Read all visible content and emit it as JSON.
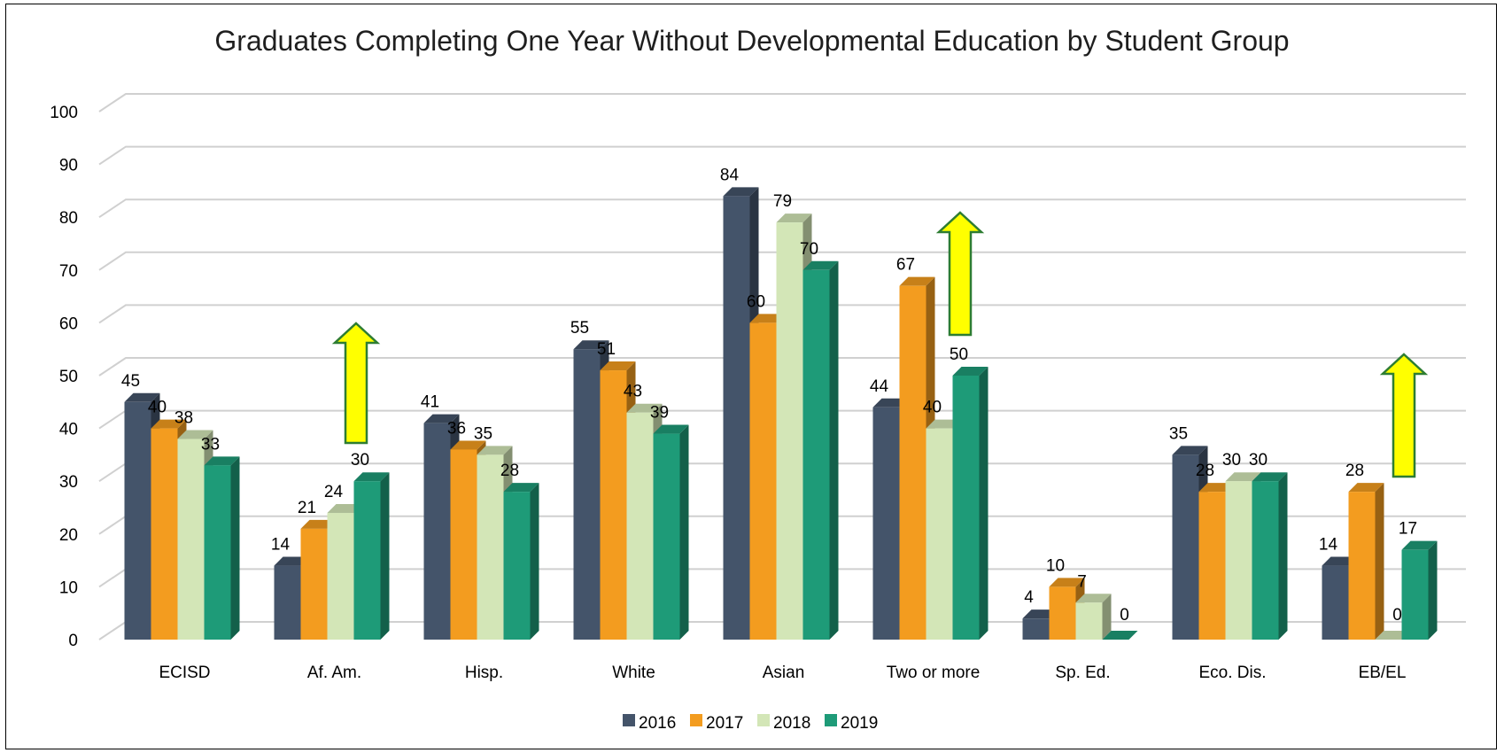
{
  "chart_data": {
    "type": "bar",
    "title": "Graduates Completing One Year Without Developmental Education by Student Group",
    "xlabel": "",
    "ylabel": "",
    "ylim": [
      0,
      100
    ],
    "yticks": [
      0,
      10,
      20,
      30,
      40,
      50,
      60,
      70,
      80,
      90,
      100
    ],
    "grid": true,
    "legend_position": "bottom",
    "three_d": true,
    "categories": [
      "ECISD",
      "Af. Am.",
      "Hisp.",
      "White",
      "Asian",
      "Two or more",
      "Sp. Ed.",
      "Eco. Dis.",
      "EB/EL"
    ],
    "series": [
      {
        "name": "2016",
        "color": "#44546a",
        "values": [
          45,
          14,
          41,
          55,
          84,
          44,
          4,
          35,
          14
        ]
      },
      {
        "name": "2017",
        "color": "#f39c1f",
        "values": [
          40,
          21,
          36,
          51,
          60,
          67,
          10,
          28,
          28
        ]
      },
      {
        "name": "2018",
        "color": "#d3e6b7",
        "values": [
          38,
          24,
          35,
          43,
          79,
          40,
          7,
          30,
          0
        ]
      },
      {
        "name": "2019",
        "color": "#1e9b78",
        "values": [
          33,
          30,
          28,
          39,
          70,
          50,
          0,
          30,
          17
        ]
      }
    ],
    "annotations": [
      {
        "type": "up-arrow",
        "category": "Af. Am.",
        "fill": "#ffff00",
        "stroke": "#2e7d32"
      },
      {
        "type": "up-arrow",
        "category": "Two or more",
        "fill": "#ffff00",
        "stroke": "#2e7d32"
      },
      {
        "type": "up-arrow",
        "category": "EB/EL",
        "fill": "#ffff00",
        "stroke": "#2e7d32"
      }
    ]
  }
}
